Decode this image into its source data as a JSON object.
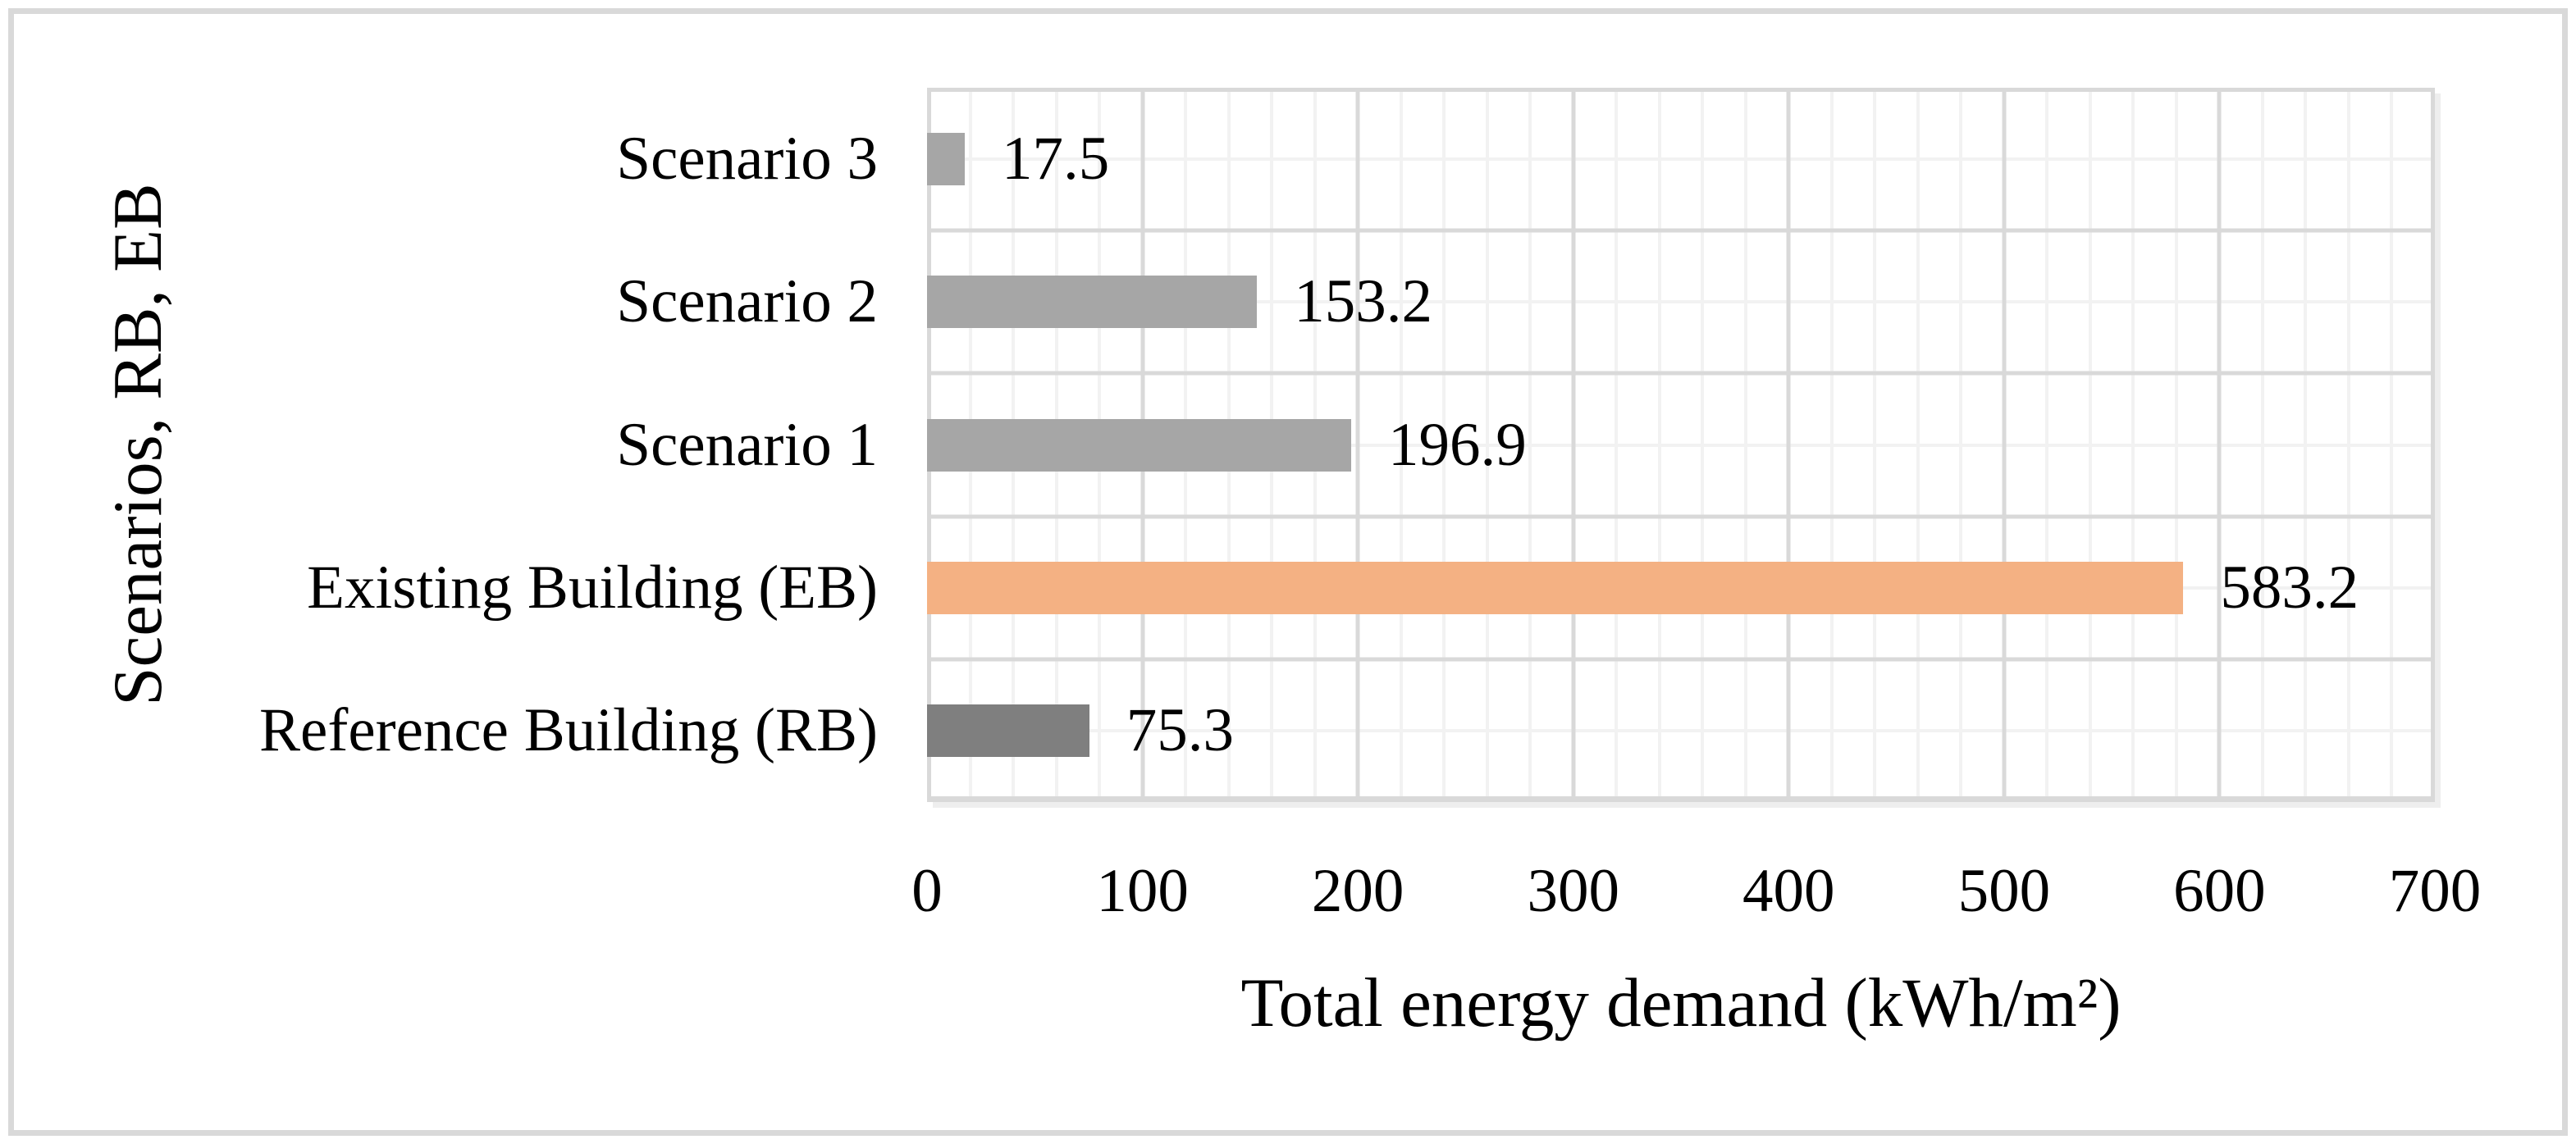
{
  "chart_data": {
    "type": "bar",
    "orientation": "horizontal",
    "title": "",
    "xlabel": "Total energy demand (kWh/m²)",
    "ylabel": "Scenarios, RB, EB",
    "categories": [
      "Scenario 3",
      "Scenario 2",
      "Scenario 1",
      "Existing Building (EB)",
      "Reference Building (RB)"
    ],
    "values": [
      17.5,
      153.2,
      196.9,
      583.2,
      75.3
    ],
    "data_labels": [
      "17.5",
      "153.2",
      "196.9",
      "583.2",
      "75.3"
    ],
    "bar_colors": [
      "#A6A6A6",
      "#A6A6A6",
      "#A6A6A6",
      "#F4B183",
      "#7F7F7F"
    ],
    "xlim": [
      0,
      700
    ],
    "x_ticks": [
      "0",
      "100",
      "200",
      "300",
      "400",
      "500",
      "600",
      "700"
    ],
    "x_major_step": 100,
    "x_minor_step": 20,
    "grid": {
      "show_major": true,
      "show_minor": true,
      "major_color": "#D9D9D9",
      "minor_color": "#F2F2F2"
    },
    "legend_position": "none",
    "text_color": "#000000",
    "frame_color": "#D9D9D9"
  }
}
